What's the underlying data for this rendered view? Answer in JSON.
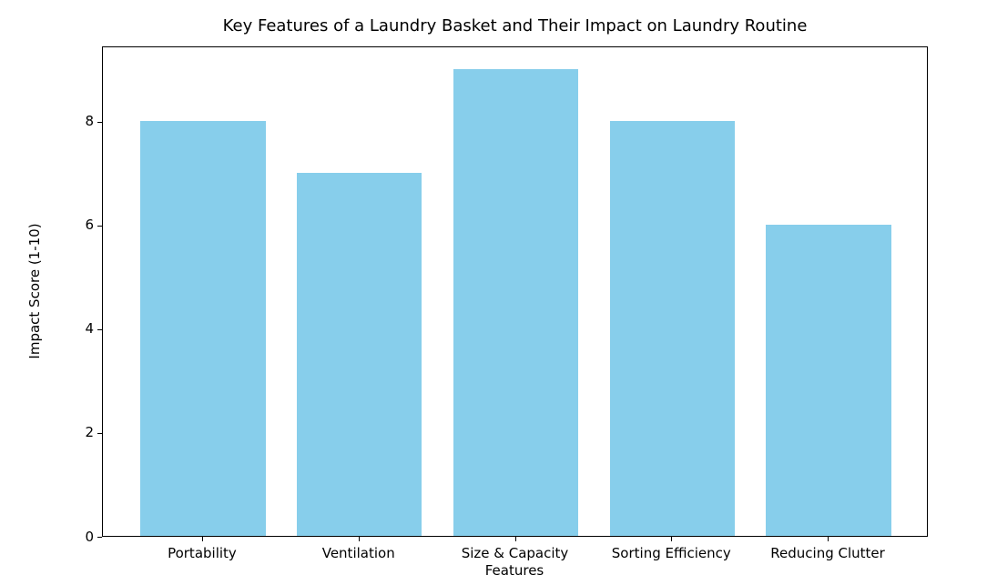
{
  "chart_data": {
    "type": "bar",
    "title": "Key Features of a Laundry Basket and Their Impact on Laundry Routine",
    "xlabel": "Features",
    "ylabel": "Impact Score (1-10)",
    "categories": [
      "Portability",
      "Ventilation",
      "Size & Capacity",
      "Sorting Efficiency",
      "Reducing Clutter"
    ],
    "values": [
      8,
      7,
      9,
      8,
      6
    ],
    "yticks": [
      0,
      2,
      4,
      6,
      8
    ],
    "ylim": [
      0,
      9.45
    ],
    "bar_width_fraction": 0.8,
    "bar_color": "#87CEEB",
    "background_color": "#FFFFFF",
    "spine_color": "#000000",
    "text_color": "#000000",
    "grid": false,
    "legend": null
  }
}
